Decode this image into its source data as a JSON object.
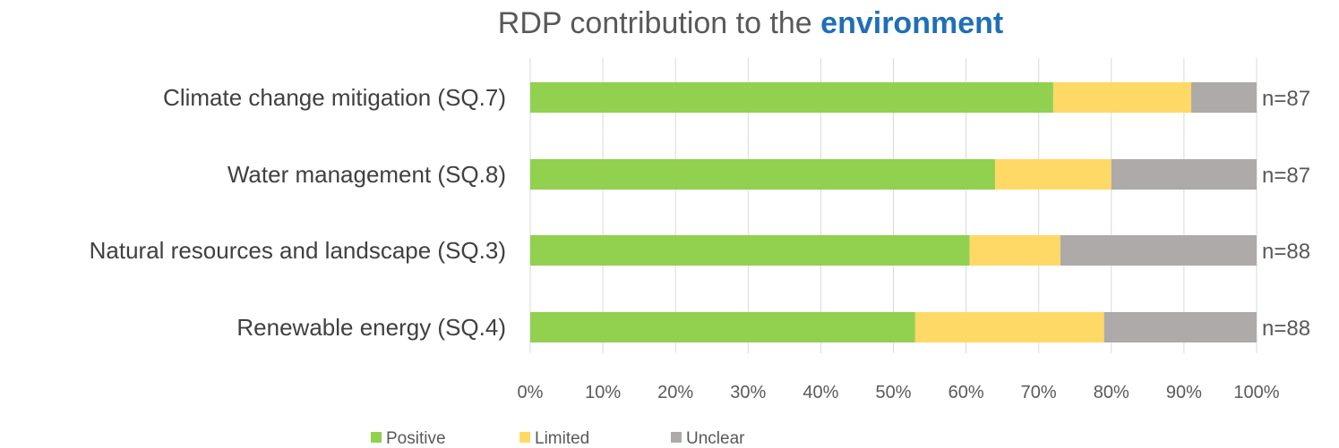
{
  "chart_data": {
    "type": "bar",
    "orientation": "horizontal",
    "stacked": true,
    "title_prefix": "RDP contribution to the ",
    "title_emphasis": "environment",
    "title_emphasis_color": "#1F6FB6",
    "categories": [
      "Climate change mitigation (SQ.7)",
      "Water management (SQ.8)",
      "Natural resources and landscape (SQ.3)",
      "Renewable energy (SQ.4)"
    ],
    "n_labels": [
      "n=87",
      "n=87",
      "n=88",
      "n=88"
    ],
    "series": [
      {
        "name": "Positive",
        "color": "#92D050",
        "values": [
          72,
          64,
          60.5,
          53
        ]
      },
      {
        "name": "Limited",
        "color": "#FFD966",
        "values": [
          19,
          16,
          12.5,
          26
        ]
      },
      {
        "name": "Unclear",
        "color": "#AEAAAA",
        "values": [
          9,
          20,
          27,
          21
        ]
      }
    ],
    "x_ticks": [
      "0%",
      "10%",
      "20%",
      "30%",
      "40%",
      "50%",
      "60%",
      "70%",
      "80%",
      "90%",
      "100%"
    ],
    "xlim": [
      0,
      100
    ],
    "grid": true,
    "legend_position": "bottom"
  }
}
